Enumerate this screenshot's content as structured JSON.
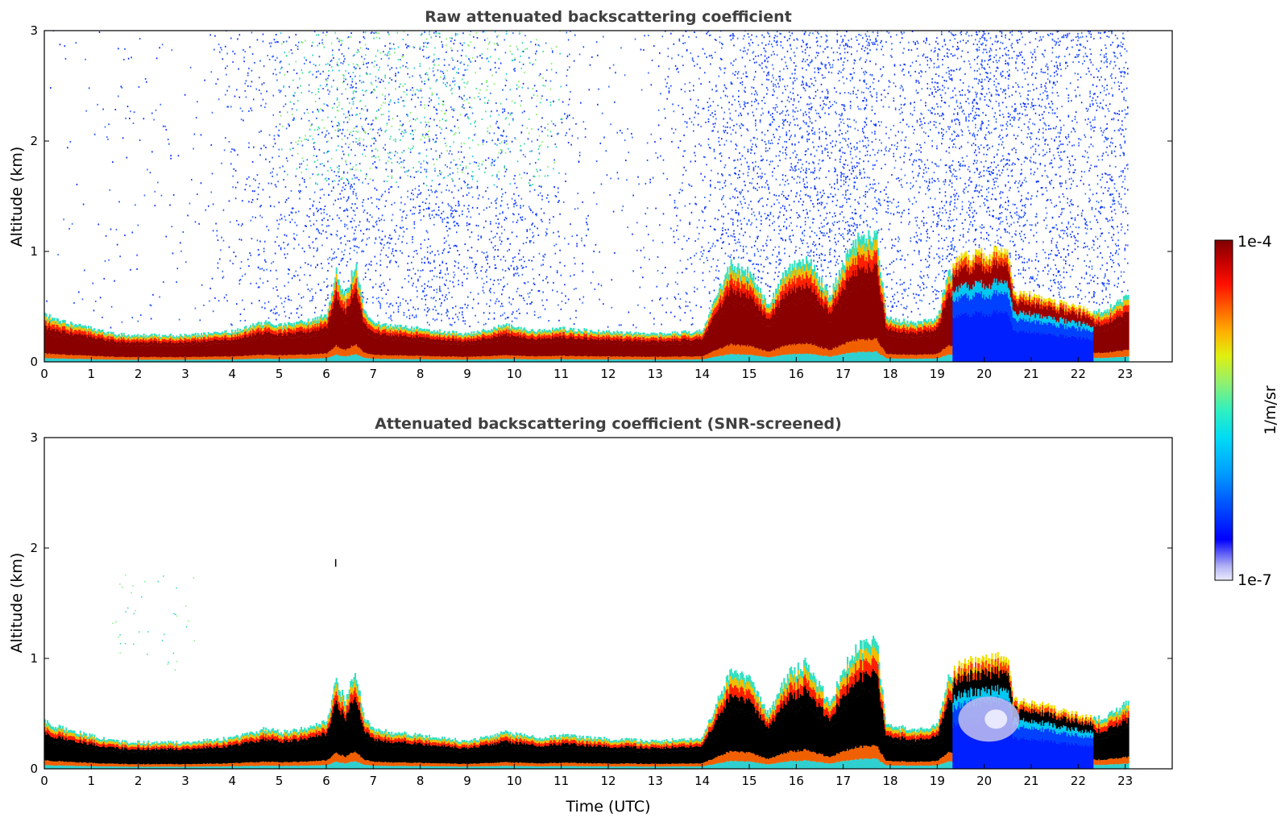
{
  "chart_data": [
    {
      "type": "heatmap",
      "title": "Raw attenuated backscattering coefficient",
      "xlabel": "",
      "ylabel": "Altitude (km)",
      "xlim": [
        0,
        24
      ],
      "ylim": [
        0,
        3
      ],
      "x_ticks": [
        "0",
        "1",
        "2",
        "3",
        "4",
        "5",
        "6",
        "7",
        "8",
        "9",
        "10",
        "11",
        "12",
        "13",
        "14",
        "15",
        "16",
        "17",
        "18",
        "19",
        "20",
        "21",
        "22",
        "23"
      ],
      "y_ticks": [
        "0",
        "1",
        "2",
        "3"
      ],
      "data_end_hour": 23.05,
      "screened": false,
      "layer_top_km": [
        [
          0,
          0.42
        ],
        [
          0.5,
          0.35
        ],
        [
          1,
          0.3
        ],
        [
          1.5,
          0.25
        ],
        [
          2,
          0.24
        ],
        [
          3,
          0.24
        ],
        [
          4,
          0.28
        ],
        [
          4.7,
          0.36
        ],
        [
          5,
          0.33
        ],
        [
          5.5,
          0.36
        ],
        [
          6,
          0.42
        ],
        [
          6.2,
          0.8
        ],
        [
          6.4,
          0.6
        ],
        [
          6.6,
          0.9
        ],
        [
          6.8,
          0.45
        ],
        [
          7,
          0.35
        ],
        [
          8,
          0.3
        ],
        [
          9,
          0.25
        ],
        [
          9.8,
          0.33
        ],
        [
          10.5,
          0.28
        ],
        [
          11,
          0.3
        ],
        [
          12,
          0.27
        ],
        [
          13,
          0.25
        ],
        [
          14,
          0.28
        ],
        [
          14.2,
          0.5
        ],
        [
          14.6,
          0.88
        ],
        [
          15,
          0.8
        ],
        [
          15.4,
          0.5
        ],
        [
          15.8,
          0.85
        ],
        [
          16.2,
          0.95
        ],
        [
          16.7,
          0.6
        ],
        [
          17,
          0.9
        ],
        [
          17.3,
          1.1
        ],
        [
          17.7,
          1.15
        ],
        [
          17.9,
          0.4
        ],
        [
          18.5,
          0.35
        ],
        [
          19,
          0.4
        ],
        [
          19.2,
          0.8
        ],
        [
          19.5,
          0.95
        ],
        [
          20.5,
          1.0
        ],
        [
          20.6,
          0.62
        ],
        [
          21,
          0.6
        ],
        [
          22,
          0.48
        ],
        [
          22.5,
          0.45
        ],
        [
          23,
          0.58
        ]
      ],
      "noise_density": [
        [
          0,
          0.05
        ],
        [
          1.2,
          0.1
        ],
        [
          2,
          0.15
        ],
        [
          3.2,
          0.1
        ],
        [
          4.5,
          0.4
        ],
        [
          5.5,
          0.6
        ],
        [
          6.5,
          0.85
        ],
        [
          8,
          0.9
        ],
        [
          9.5,
          0.7
        ],
        [
          10.5,
          0.6
        ],
        [
          11,
          0.3
        ],
        [
          12,
          0.12
        ],
        [
          13,
          0.2
        ],
        [
          14,
          0.55
        ],
        [
          15,
          0.75
        ],
        [
          16,
          0.8
        ],
        [
          17,
          0.85
        ],
        [
          18,
          0.6
        ],
        [
          19,
          0.85
        ],
        [
          20,
          0.95
        ],
        [
          21,
          0.85
        ],
        [
          22,
          0.8
        ],
        [
          23,
          0.85
        ]
      ]
    },
    {
      "type": "heatmap",
      "title": "Attenuated backscattering coefficient (SNR-screened)",
      "xlabel": "Time (UTC)",
      "ylabel": "Altitude (km)",
      "xlim": [
        0,
        24
      ],
      "ylim": [
        0,
        3
      ],
      "x_ticks": [
        "0",
        "1",
        "2",
        "3",
        "4",
        "5",
        "6",
        "7",
        "8",
        "9",
        "10",
        "11",
        "12",
        "13",
        "14",
        "15",
        "16",
        "17",
        "18",
        "19",
        "20",
        "21",
        "22",
        "23"
      ],
      "y_ticks": [
        "0",
        "1",
        "2",
        "3"
      ],
      "data_end_hour": 23.05,
      "screened": true
    }
  ],
  "colorbar": {
    "label": "1/m/sr",
    "max_label": "1e-4",
    "min_label": "1e-7",
    "colors": [
      "#e8e8ff",
      "#b0b0f0",
      "#6a6af0",
      "#0000ff",
      "#0060ff",
      "#00a0ff",
      "#00e0f0",
      "#40f0b0",
      "#a0f060",
      "#f0f000",
      "#ffb000",
      "#ff6000",
      "#ff0000",
      "#c80000",
      "#800000"
    ]
  }
}
